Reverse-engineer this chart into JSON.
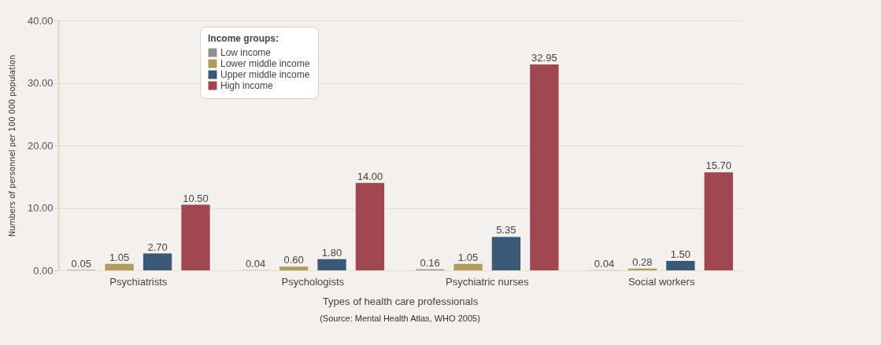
{
  "chart_data": {
    "type": "bar",
    "xlabel": "Types of health care professionals",
    "ylabel": "Numbers of personnel per 100 000 population",
    "legend_title": "Income groups:",
    "annotations": [
      "(Source: Mental Health Atlas, WHO 2005)"
    ],
    "categories": [
      "Psychiatrists",
      "Psychologists",
      "Psychiatric nurses",
      "Social workers"
    ],
    "series": [
      {
        "name": "Low income",
        "color": "#8e8e93",
        "values": [
          0.05,
          0.04,
          0.16,
          0.04
        ],
        "value_labels": [
          "0.05",
          "0.04",
          "0.16",
          "0.04"
        ]
      },
      {
        "name": "Lower middle income",
        "color": "#b09c5e",
        "values": [
          1.05,
          0.6,
          1.05,
          0.28
        ],
        "value_labels": [
          "1.05",
          "0.60",
          "1.05",
          "0.28"
        ]
      },
      {
        "name": "Upper middle income",
        "color": "#3b5876",
        "values": [
          2.7,
          1.8,
          5.35,
          1.5
        ],
        "value_labels": [
          "2.70",
          "1.80",
          "5.35",
          "1.50"
        ]
      },
      {
        "name": "High income",
        "color": "#a0474f",
        "values": [
          10.5,
          14.0,
          32.95,
          15.7
        ],
        "value_labels": [
          "10.50",
          "14.00",
          "32.95",
          "15.70"
        ]
      }
    ],
    "ylim": [
      0,
      40
    ],
    "yticks": [
      {
        "value": 0,
        "label": "0.00"
      },
      {
        "value": 10,
        "label": "10.00"
      },
      {
        "value": 20,
        "label": "20.00"
      },
      {
        "value": 30,
        "label": "30.00"
      },
      {
        "value": 40,
        "label": "40.00"
      }
    ],
    "grid": "y",
    "legend": "top left"
  }
}
